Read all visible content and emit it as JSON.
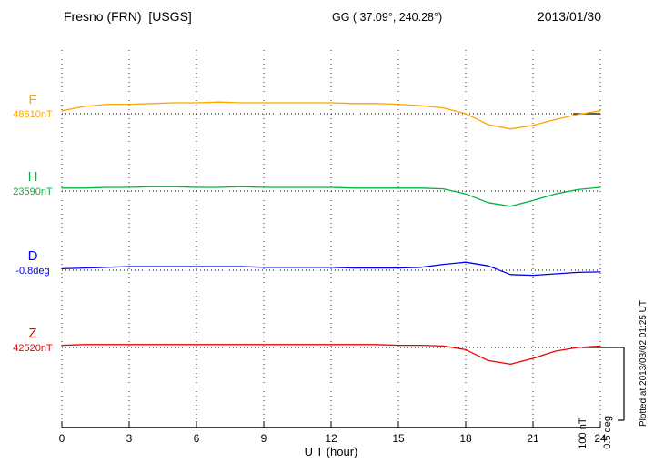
{
  "header": {
    "station_title": "Fresno (FRN)  [USGS]",
    "gg_coords": "GG ( 37.09°, 240.28°)",
    "date": "2013/01/30"
  },
  "axis": {
    "xlabel": "U T (hour)"
  },
  "annotations": {
    "scale_nt": "100 nT",
    "scale_deg": "0.5 deg",
    "plotted_at": "Plotted at 2013/03/02 01:25 UT"
  },
  "chart_data": {
    "type": "line",
    "title": "Fresno (FRN)  [USGS]",
    "subtitle_coords": "GG ( 37.09°, 240.28°)",
    "date": "2013/01/30",
    "xlabel": "U T (hour)",
    "x_range": [
      0,
      24
    ],
    "x_ticks": [
      0,
      3,
      6,
      9,
      12,
      15,
      18,
      21,
      24
    ],
    "grid": "dotted vertical lines at 3-hour ticks; dotted horizontal baseline per channel",
    "scale_per_division": {
      "nT": 100,
      "deg": 0.5
    },
    "x_hours": [
      0,
      1,
      2,
      3,
      4,
      5,
      6,
      7,
      8,
      9,
      10,
      11,
      12,
      13,
      14,
      15,
      16,
      17,
      18,
      19,
      20,
      21,
      22,
      23,
      24
    ],
    "series": [
      {
        "name": "F",
        "units": "nT",
        "baseline_value": 48610,
        "baseline_label": "48610nT",
        "color": "#FFA500",
        "offsets": [
          4,
          10,
          13,
          13,
          14,
          15,
          15,
          16,
          15,
          15,
          15,
          15,
          15,
          14,
          14,
          13,
          11,
          8,
          0,
          -15,
          -21,
          -16,
          -8,
          -1,
          4
        ]
      },
      {
        "name": "H",
        "units": "nT",
        "baseline_value": 23590,
        "baseline_label": "23590nT",
        "color": "#00B43C",
        "offsets": [
          4,
          4,
          5,
          5,
          6,
          6,
          5,
          5,
          6,
          5,
          5,
          5,
          5,
          4,
          4,
          4,
          4,
          3,
          -4,
          -16,
          -21,
          -13,
          -4,
          2,
          5
        ]
      },
      {
        "name": "D",
        "units": "deg",
        "baseline_value": -0.8,
        "baseline_label": "-0.8deg",
        "color": "#0000EE",
        "offsets": [
          0.01,
          0.015,
          0.02,
          0.025,
          0.025,
          0.025,
          0.025,
          0.025,
          0.025,
          0.02,
          0.02,
          0.02,
          0.02,
          0.015,
          0.015,
          0.015,
          0.02,
          0.04,
          0.055,
          0.03,
          -0.03,
          -0.035,
          -0.025,
          -0.015,
          -0.012
        ]
      },
      {
        "name": "Z",
        "units": "nT",
        "baseline_value": 42520,
        "baseline_label": "42520nT",
        "color": "#EE0000",
        "offsets": [
          3,
          4,
          4,
          4,
          4,
          4,
          4,
          4,
          4,
          4,
          4,
          4,
          4,
          4,
          4,
          3,
          3,
          2,
          -3,
          -18,
          -23,
          -15,
          -5,
          0,
          2
        ]
      }
    ]
  }
}
